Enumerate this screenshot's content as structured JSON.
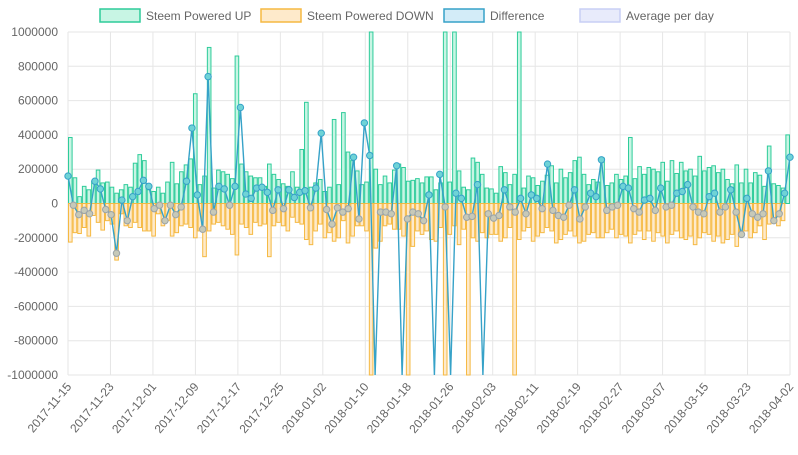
{
  "chart_data": {
    "type": "bar",
    "legend_position": "top",
    "grid": true,
    "ylim": [
      -1000000,
      1000000
    ],
    "yticks": [
      1000000,
      800000,
      600000,
      400000,
      200000,
      0,
      -200000,
      -400000,
      -600000,
      -800000,
      -1000000
    ],
    "x_start": "2017-11-15",
    "x_end": "2018-04-02",
    "x_tick_labels": [
      "2017-11-15",
      "2017-11-23",
      "2017-12-01",
      "2017-12-09",
      "2017-12-17",
      "2017-12-25",
      "2018-01-02",
      "2018-01-10",
      "2018-01-18",
      "2018-01-26",
      "2018-02-03",
      "2018-02-11",
      "2018-02-19",
      "2018-02-27",
      "2018-03-07",
      "2018-03-15",
      "2018-03-23",
      "2018-04-02"
    ],
    "series": [
      {
        "name": "Steem Powered UP",
        "kind": "bar",
        "color": "#2ecc9a",
        "fill": "#c8f5e4",
        "values": [
          385000,
          150000,
          40000,
          100000,
          80000,
          130000,
          195000,
          120000,
          125000,
          95000,
          60000,
          80000,
          110000,
          95000,
          235000,
          285000,
          250000,
          80000,
          70000,
          95000,
          60000,
          125000,
          240000,
          115000,
          185000,
          225000,
          260000,
          640000,
          110000,
          160000,
          910000,
          90000,
          195000,
          185000,
          170000,
          145000,
          860000,
          230000,
          185000,
          160000,
          150000,
          150000,
          100000,
          230000,
          170000,
          140000,
          115000,
          100000,
          185000,
          95000,
          315000,
          590000,
          95000,
          120000,
          140000,
          70000,
          95000,
          490000,
          110000,
          530000,
          300000,
          250000,
          190000,
          110000,
          125000,
          1000000,
          200000,
          110000,
          160000,
          120000,
          195000,
          230000,
          210000,
          130000,
          135000,
          145000,
          120000,
          155000,
          155000,
          80000,
          120000,
          1000000,
          125000,
          1000000,
          190000,
          95000,
          80000,
          265000,
          240000,
          170000,
          90000,
          85000,
          60000,
          215000,
          180000,
          110000,
          170000,
          1000000,
          90000,
          160000,
          150000,
          105000,
          130000,
          165000,
          220000,
          120000,
          200000,
          150000,
          180000,
          250000,
          270000,
          170000,
          110000,
          140000,
          125000,
          265000,
          105000,
          120000,
          170000,
          140000,
          160000,
          385000,
          145000,
          215000,
          170000,
          210000,
          200000,
          185000,
          240000,
          130000,
          250000,
          175000,
          240000,
          190000,
          200000,
          160000,
          275000,
          190000,
          210000,
          220000,
          180000,
          200000,
          140000,
          115000,
          225000,
          120000,
          200000,
          120000,
          180000,
          165000,
          100000,
          335000,
          115000,
          105000,
          90000,
          400000
        ],
        "xoffsets_note": ""
      },
      {
        "name": "Steem Powered DOWN",
        "kind": "bar",
        "color": "#f5b942",
        "fill": "#feeacb",
        "values": [
          -225000,
          -170000,
          -175000,
          -140000,
          -190000,
          -70000,
          -110000,
          -155000,
          -100000,
          -120000,
          -330000,
          -60000,
          -130000,
          -140000,
          -110000,
          -140000,
          -160000,
          -160000,
          -190000,
          -60000,
          -130000,
          -100000,
          -190000,
          -170000,
          -130000,
          -120000,
          -140000,
          -200000,
          -160000,
          -310000,
          -160000,
          -120000,
          -110000,
          -130000,
          -150000,
          -180000,
          -300000,
          -120000,
          -140000,
          -180000,
          -110000,
          -130000,
          -120000,
          -310000,
          -130000,
          -110000,
          -130000,
          -160000,
          -80000,
          -110000,
          -120000,
          -210000,
          -240000,
          -160000,
          -120000,
          -200000,
          -170000,
          -220000,
          -200000,
          -100000,
          -230000,
          -190000,
          -130000,
          -130000,
          -160000,
          -1000000,
          -260000,
          -220000,
          -130000,
          -120000,
          -150000,
          -150000,
          -190000,
          -1000000,
          -250000,
          -160000,
          -180000,
          -160000,
          -210000,
          -220000,
          -140000,
          -1000000,
          -180000,
          -130000,
          -240000,
          -150000,
          -1000000,
          -200000,
          -220000,
          -170000,
          -200000,
          -180000,
          -180000,
          -220000,
          -200000,
          -140000,
          -1000000,
          -210000,
          -160000,
          -140000,
          -220000,
          -190000,
          -170000,
          -140000,
          -160000,
          -230000,
          -210000,
          -180000,
          -160000,
          -190000,
          -230000,
          -220000,
          -180000,
          -170000,
          -200000,
          -200000,
          -170000,
          -150000,
          -200000,
          -180000,
          -190000,
          -230000,
          -180000,
          -160000,
          -210000,
          -160000,
          -220000,
          -170000,
          -190000,
          -230000,
          -180000,
          -160000,
          -200000,
          -210000,
          -190000,
          -240000,
          -200000,
          -170000,
          -180000,
          -220000,
          -190000,
          -230000,
          -210000,
          -180000,
          -250000,
          -180000,
          -160000,
          -200000,
          -170000,
          -130000,
          -210000,
          -120000,
          -110000,
          -130000,
          -100000
        ]
      },
      {
        "name": "Difference",
        "kind": "line",
        "color": "#36a2c8",
        "fill": "#d3ecf8",
        "values": [
          160000,
          -10000,
          -65000,
          -40000,
          -60000,
          130000,
          85000,
          -35000,
          -65000,
          -290000,
          20000,
          -100000,
          40000,
          70000,
          135000,
          100000,
          -30000,
          -10000,
          -100000,
          -10000,
          -65000,
          -20000,
          130000,
          440000,
          50000,
          -150000,
          740000,
          -50000,
          100000,
          85000,
          -10000,
          100000,
          560000,
          55000,
          30000,
          90000,
          95000,
          65000,
          -40000,
          80000,
          -30000,
          80000,
          35000,
          65000,
          75000,
          -25000,
          90000,
          410000,
          -35000,
          -120000,
          -25000,
          -50000,
          -30000,
          270000,
          -90000,
          470000,
          280000,
          -1000000,
          -50000,
          -50000,
          -60000,
          220000,
          -1000000,
          -90000,
          -50000,
          -60000,
          -100000,
          50000,
          -1000000,
          170000,
          -20000,
          -1000000,
          60000,
          30000,
          -80000,
          -75000,
          110000,
          -1000000,
          -60000,
          -85000,
          -70000,
          80000,
          -20000,
          -50000,
          30000,
          -60000,
          50000,
          30000,
          -30000,
          230000,
          -40000,
          -70000,
          -80000,
          -10000,
          80000,
          -90000,
          -20000,
          60000,
          40000,
          255000,
          -40000,
          -20000,
          -10000,
          100000,
          90000,
          -30000,
          -50000,
          20000,
          30000,
          -40000,
          90000,
          -20000,
          -10000,
          60000,
          70000,
          110000,
          -20000,
          -50000,
          -60000,
          40000,
          60000,
          -50000,
          -20000,
          80000,
          -50000,
          -180000,
          30000,
          -60000,
          -80000,
          -60000,
          190000,
          -100000,
          -60000,
          60000,
          270000
        ],
        "x_mode": "line"
      },
      {
        "name": "Average per day",
        "kind": "line",
        "color": "#c8cff5",
        "fill": "#e8ebfb",
        "values": []
      }
    ]
  },
  "legend": {
    "items": [
      {
        "label": "Steem Powered UP",
        "border": "#2ecc9a",
        "fill": "#c8f5e4"
      },
      {
        "label": "Steem Powered DOWN",
        "border": "#f5b942",
        "fill": "#feeacb"
      },
      {
        "label": "Difference",
        "border": "#36a2c8",
        "fill": "#d3ecf8"
      },
      {
        "label": "Average per day",
        "border": "#c8cff5",
        "fill": "#e8ebfb"
      }
    ]
  },
  "colors": {
    "grid": "#e6e6e6",
    "axis_text": "#666666",
    "zero_line": "#bdbdbd"
  }
}
